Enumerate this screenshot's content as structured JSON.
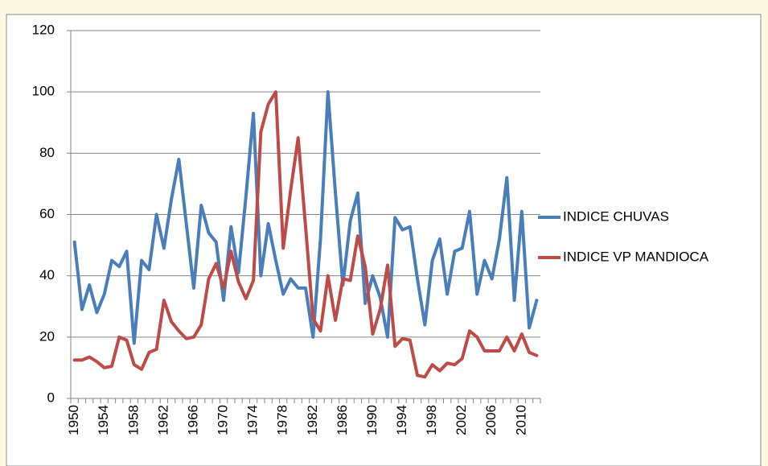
{
  "chart_data": {
    "type": "line",
    "categories": [
      "1950",
      null,
      null,
      null,
      "1954",
      null,
      null,
      null,
      "1958",
      null,
      null,
      null,
      "1962",
      null,
      null,
      null,
      "1966",
      null,
      null,
      null,
      "1970",
      null,
      null,
      null,
      "1974",
      null,
      null,
      null,
      "1978",
      null,
      null,
      null,
      "1982",
      null,
      null,
      null,
      "1986",
      null,
      null,
      null,
      "1990",
      null,
      null,
      null,
      "1994",
      null,
      null,
      null,
      "1998",
      null,
      null,
      null,
      "2002",
      null,
      null,
      null,
      "2006",
      null,
      null,
      null,
      "2010",
      null,
      null
    ],
    "series": [
      {
        "name": "INDICE CHUVAS",
        "color": "#4a7ebb",
        "values": [
          51,
          29,
          37,
          28,
          34,
          45,
          43,
          48,
          18,
          45,
          42,
          60,
          49,
          65,
          78,
          57,
          36,
          63,
          54,
          51,
          32,
          56,
          41,
          66,
          93,
          40,
          57,
          45,
          34,
          39,
          36,
          36,
          20,
          52,
          100,
          67,
          37,
          58,
          67,
          31,
          40,
          33,
          20,
          59,
          55,
          56,
          39,
          24,
          45,
          52,
          34,
          48,
          49,
          61,
          34,
          45,
          39,
          52,
          72,
          32,
          61,
          23,
          32
        ]
      },
      {
        "name": "INDICE VP MANDIOCA",
        "color": "#be4b48",
        "values": [
          12.5,
          12.5,
          13.5,
          12,
          10,
          10.5,
          20,
          19,
          11,
          9.5,
          15,
          16,
          32,
          25,
          22,
          19.5,
          20,
          24,
          39,
          44,
          36,
          48,
          38,
          32.5,
          38.5,
          87,
          96,
          100,
          49,
          68,
          85,
          56,
          26,
          22,
          40,
          25.5,
          39,
          38.5,
          53,
          43,
          21,
          29,
          43.5,
          17,
          19.5,
          19,
          7.5,
          7,
          11,
          9,
          11.5,
          11,
          13,
          22,
          20,
          15.5,
          15.5,
          15.5,
          20,
          15.5,
          21,
          15,
          14
        ]
      }
    ],
    "ylim": [
      0,
      120
    ],
    "yticks": [
      0,
      20,
      40,
      60,
      80,
      100,
      120
    ],
    "grid": true,
    "legend": "right"
  }
}
